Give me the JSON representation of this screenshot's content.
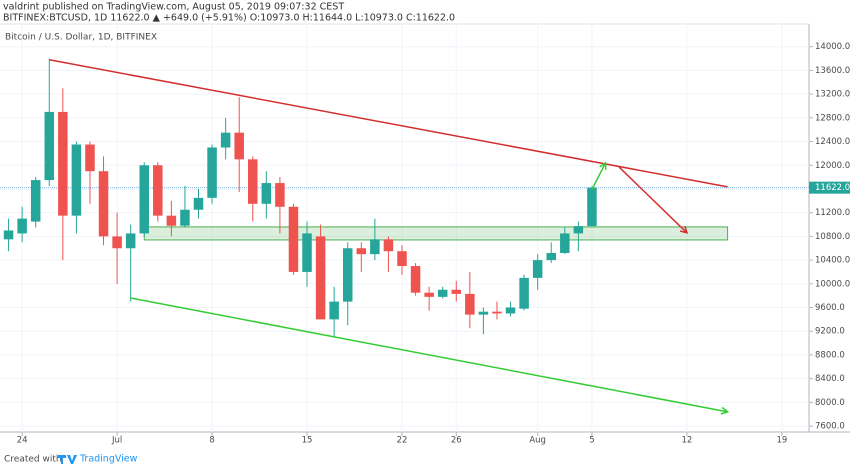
{
  "header": {
    "line1": "valdrint published on TradingView.com, August 05, 2019 09:07:32 CEST",
    "line2": "BITFINEX:BTCUSD, 1D 11622.0 ▲ +649.0 (+5.91%) O:10973.0 H:11644.0 L:10973.0 C:11622.0"
  },
  "footer": {
    "prefix": "Created with",
    "brand": "TradingView"
  },
  "chart_data": {
    "type": "candlestick",
    "title": "Bitcoin / U.S. Dollar, 1D, BITFINEX",
    "x": [
      "06-23",
      "06-24",
      "06-25",
      "06-26",
      "06-27",
      "06-28",
      "06-29",
      "06-30",
      "07-01",
      "07-02",
      "07-03",
      "07-04",
      "07-05",
      "07-06",
      "07-07",
      "07-08",
      "07-09",
      "07-10",
      "07-11",
      "07-12",
      "07-13",
      "07-14",
      "07-15",
      "07-16",
      "07-17",
      "07-18",
      "07-19",
      "07-20",
      "07-21",
      "07-22",
      "07-23",
      "07-24",
      "07-25",
      "07-26",
      "07-27",
      "07-28",
      "07-29",
      "07-30",
      "07-31",
      "08-01",
      "08-02",
      "08-03",
      "08-04",
      "08-05"
    ],
    "open": [
      10750,
      10850,
      11050,
      11750,
      12900,
      11150,
      12350,
      11900,
      10800,
      10600,
      10850,
      12000,
      11150,
      10980,
      11250,
      11450,
      12300,
      12550,
      12100,
      11350,
      11700,
      11300,
      10200,
      10800,
      9400,
      9700,
      10600,
      10500,
      10750,
      10550,
      10300,
      9850,
      9780,
      9900,
      9830,
      9480,
      9530,
      9500,
      9580,
      10100,
      10400,
      10520,
      10850,
      10973
    ],
    "high": [
      11100,
      11300,
      11800,
      13800,
      13300,
      12400,
      12400,
      12150,
      11200,
      11000,
      12050,
      12050,
      11400,
      11650,
      11600,
      12350,
      12800,
      13150,
      12150,
      11900,
      11800,
      11350,
      11050,
      11000,
      9950,
      10700,
      10700,
      11100,
      10800,
      10650,
      10350,
      9950,
      9950,
      10050,
      10200,
      9600,
      9700,
      9700,
      10150,
      10500,
      10700,
      10950,
      11050,
      11644
    ],
    "low": [
      10550,
      10700,
      10950,
      11650,
      10400,
      10850,
      11350,
      10650,
      10000,
      9700,
      10800,
      11050,
      10800,
      10950,
      11100,
      11350,
      12100,
      11550,
      11050,
      11100,
      10850,
      10150,
      9950,
      9400,
      9100,
      9300,
      10200,
      10400,
      10200,
      10150,
      9800,
      9550,
      9750,
      9700,
      9250,
      9150,
      9400,
      9450,
      9550,
      9900,
      10350,
      10500,
      10550,
      10973
    ],
    "close": [
      10900,
      11100,
      11750,
      12900,
      11150,
      12350,
      11900,
      10800,
      10600,
      10850,
      12000,
      11150,
      10980,
      11250,
      11450,
      12300,
      12550,
      12100,
      11350,
      11700,
      11300,
      10200,
      10850,
      9400,
      9700,
      10600,
      10500,
      10750,
      10550,
      10300,
      9850,
      9780,
      9900,
      9830,
      9480,
      9530,
      9500,
      9600,
      10100,
      10400,
      10520,
      10850,
      10973,
      11622
    ],
    "up_color": "#26a69a",
    "down_color": "#ef5350",
    "xlim": [
      "06-22",
      "08-21"
    ],
    "xticks": [
      {
        "value": "06-24",
        "label": "24"
      },
      {
        "value": "07-01",
        "label": "Jul"
      },
      {
        "value": "07-08",
        "label": "8"
      },
      {
        "value": "07-15",
        "label": "15"
      },
      {
        "value": "07-22",
        "label": "22"
      },
      {
        "value": "07-26",
        "label": "26"
      },
      {
        "value": "08-01",
        "label": "Aug"
      },
      {
        "value": "08-05",
        "label": "5"
      },
      {
        "value": "08-12",
        "label": "12"
      },
      {
        "value": "08-19",
        "label": "19"
      }
    ],
    "ylim": [
      7500,
      14400
    ],
    "yticks": [
      {
        "value": 7600,
        "label": "7600.0"
      },
      {
        "value": 8000,
        "label": "8000.0"
      },
      {
        "value": 8400,
        "label": "8400.0"
      },
      {
        "value": 8800,
        "label": "8800.0"
      },
      {
        "value": 9200,
        "label": "9200.0"
      },
      {
        "value": 9600,
        "label": "9600.0"
      },
      {
        "value": 10000,
        "label": "10000.0"
      },
      {
        "value": 10400,
        "label": "10400.0"
      },
      {
        "value": 10800,
        "label": "10800.0"
      },
      {
        "value": 11200,
        "label": "11200.0"
      },
      {
        "value": 11600,
        "label": "11600.0"
      },
      {
        "value": 12000,
        "label": "12000.0"
      },
      {
        "value": 12400,
        "label": "12400.0"
      },
      {
        "value": 12800,
        "label": "12800.0"
      },
      {
        "value": 13200,
        "label": "13200.0"
      },
      {
        "value": 13600,
        "label": "13600.0"
      },
      {
        "value": 14000,
        "label": "14000.0"
      }
    ],
    "grid": true,
    "last_price": {
      "value": 11622,
      "label": "11622.0",
      "color": "#26a69a"
    },
    "zone": {
      "x": [
        "07-03",
        "08-15"
      ],
      "y": [
        10740,
        10960
      ],
      "color": "#4caf50"
    },
    "trendlines": [
      {
        "color": "#d32f2f",
        "arrow": false,
        "x": [
          "06-26",
          "08-15"
        ],
        "y": [
          13780,
          11636
        ]
      },
      {
        "color": "#d32f2f",
        "arrow": true,
        "x": [
          "08-07",
          "08-12"
        ],
        "y": [
          11970,
          10860
        ]
      },
      {
        "color": "#33cc33",
        "arrow": true,
        "x": [
          "08-05",
          "08-06"
        ],
        "y": [
          11590,
          12040
        ]
      },
      {
        "color": "#33cc33",
        "arrow": true,
        "x": [
          "07-02",
          "08-15"
        ],
        "y": [
          9760,
          7840
        ]
      }
    ]
  }
}
